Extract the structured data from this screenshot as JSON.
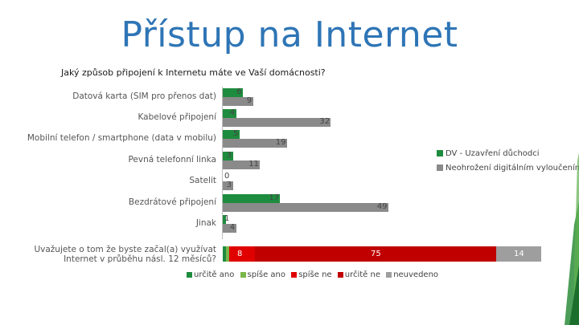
{
  "title": "Přístup na Internet",
  "question": "Jaký způsob připojení k Internetu máte ve Vaší domácnosti?",
  "colors": {
    "dv": "#1e8c3e",
    "ne": "#8a8a8a",
    "urcite_ano": "#1e8c3e",
    "spise_ano": "#7ab648",
    "spise_ne": "#e00000",
    "urcite_ne": "#c00000",
    "neuvedeno": "#9e9e9e",
    "title": "#2e75b6"
  },
  "chart_data": [
    {
      "type": "bar",
      "orientation": "horizontal",
      "categories": [
        "Datová karta (SIM pro přenos dat)",
        "Kabelové připojení",
        "Mobilní telefon / smartphone (data v mobilu)",
        "Pevná telefonní linka",
        "Satelit",
        "Bezdrátové připojení",
        "Jinak"
      ],
      "series": [
        {
          "name": "DV - Uzavření důchodci",
          "values": [
            6,
            4,
            5,
            3,
            0,
            17,
            1
          ]
        },
        {
          "name": "Neohrožení digitálním vyloučením",
          "values": [
            9,
            32,
            19,
            11,
            3,
            49,
            4
          ]
        }
      ],
      "legend_position": "right"
    },
    {
      "type": "bar",
      "orientation": "horizontal",
      "stacked": true,
      "categories": [
        "Uvažujete o tom že byste začal(a) využívat Internet v průběhu násl. 12 měsíců?"
      ],
      "series": [
        {
          "name": "určitě ano",
          "values": [
            1
          ]
        },
        {
          "name": "spíše ano",
          "values": [
            1
          ]
        },
        {
          "name": "spíše ne",
          "values": [
            8
          ]
        },
        {
          "name": "určitě ne",
          "values": [
            75
          ]
        },
        {
          "name": "neuvedeno",
          "values": [
            14
          ]
        }
      ],
      "legend_position": "bottom"
    }
  ]
}
